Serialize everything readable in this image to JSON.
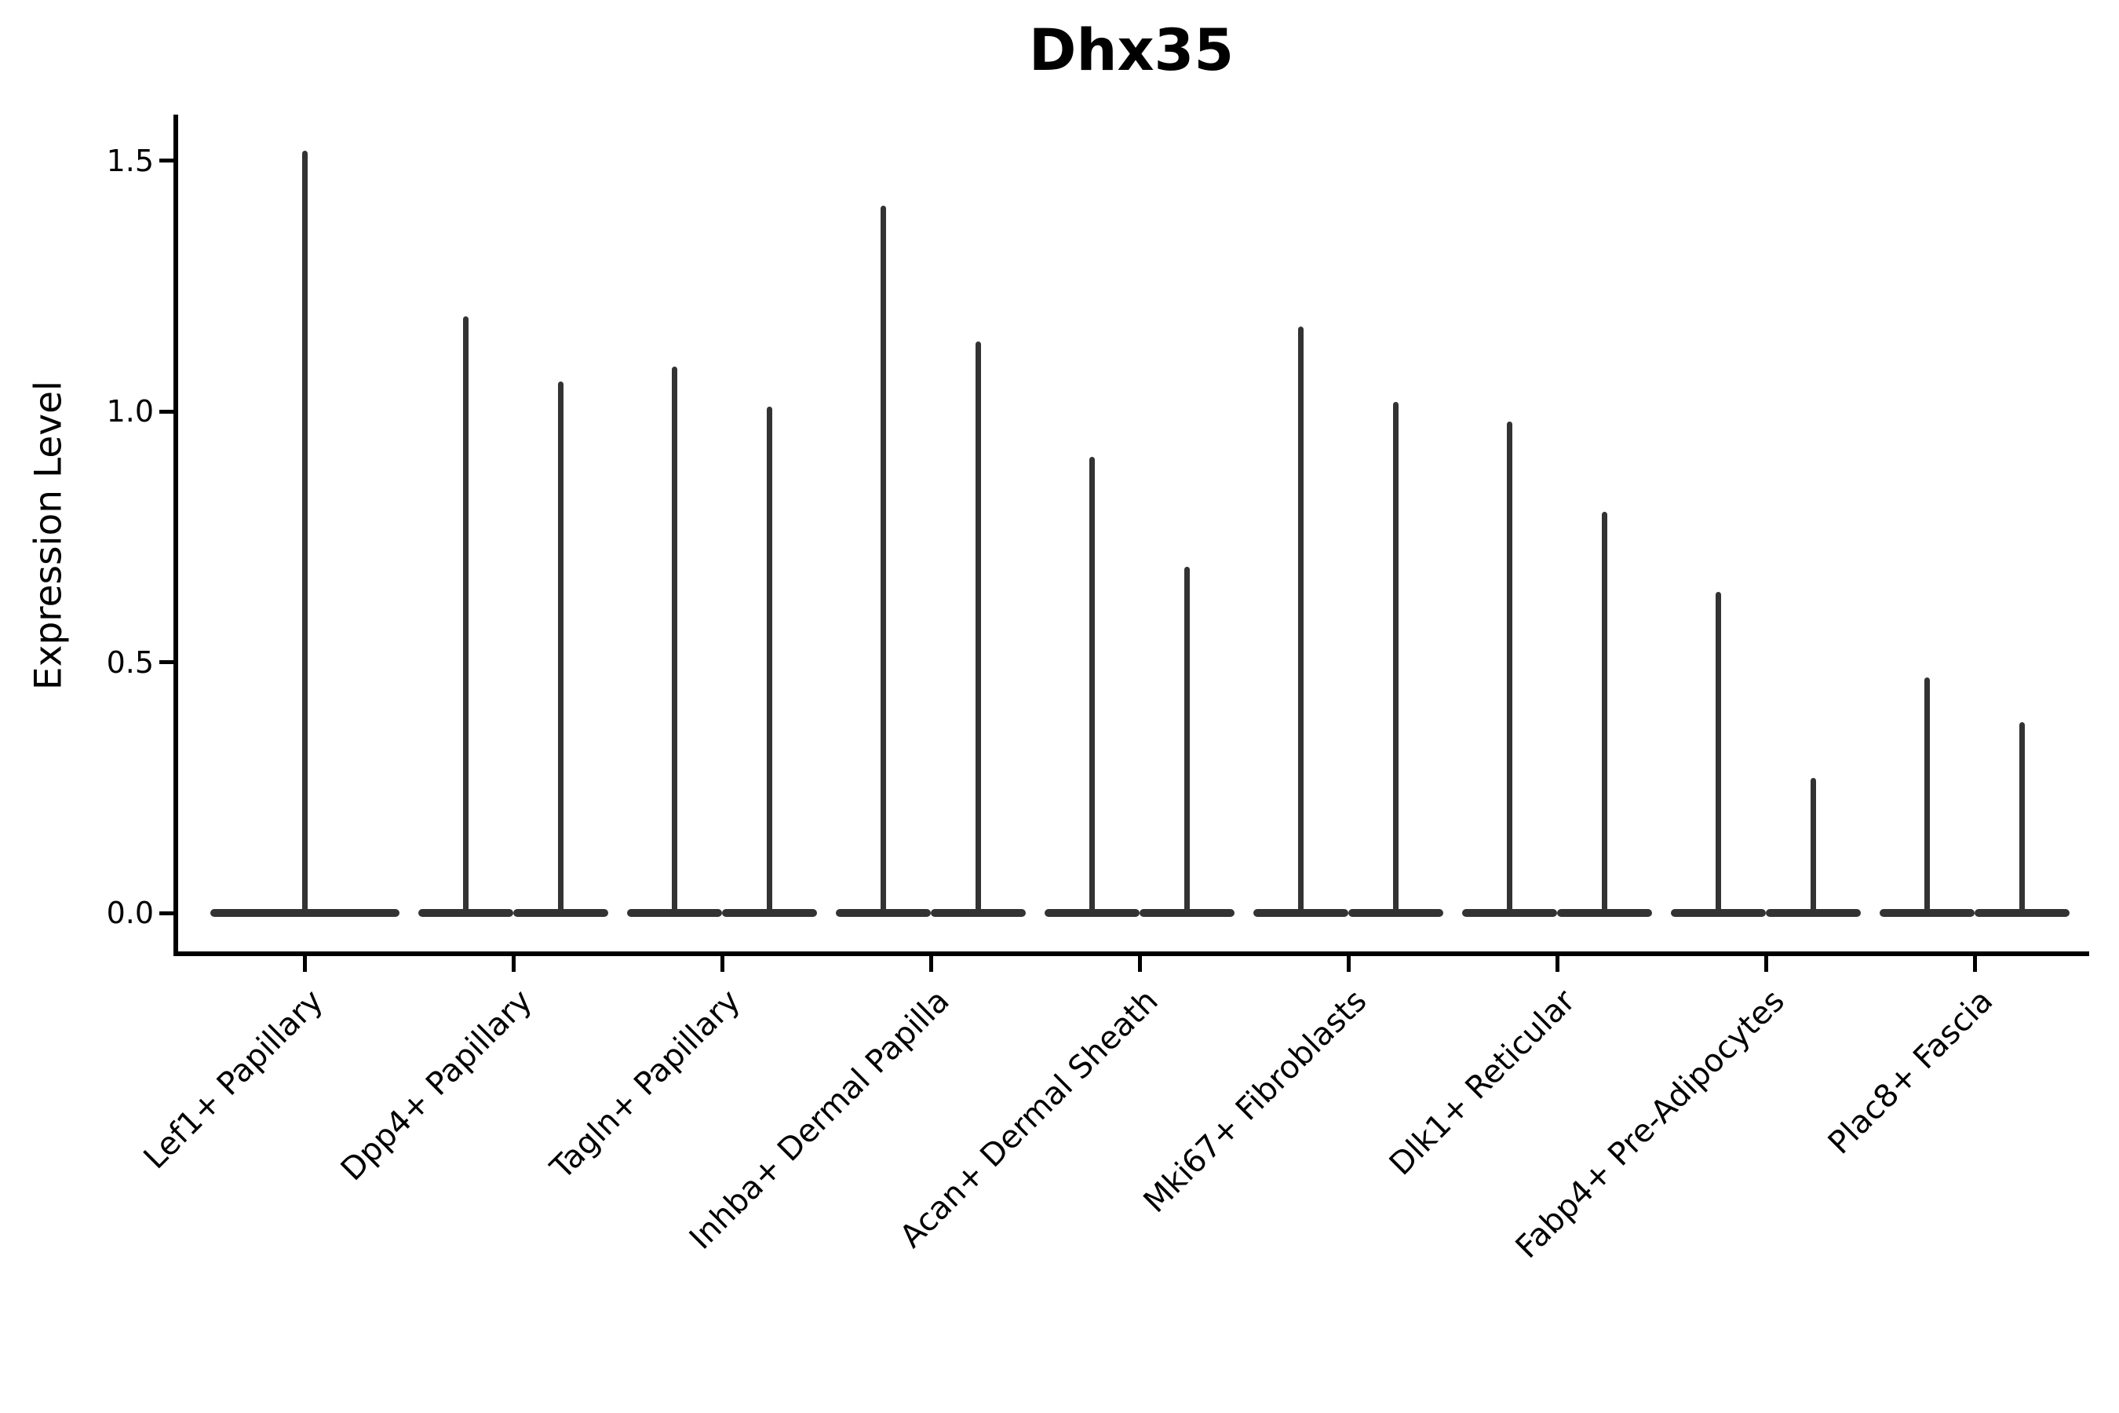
{
  "chart_data": {
    "type": "violin",
    "title": "Dhx35",
    "ylabel": "Expression Level",
    "xlabel": "",
    "y_ticks": [
      0.0,
      0.5,
      1.0,
      1.5
    ],
    "ylim": [
      -0.05,
      1.58
    ],
    "grid": false,
    "legend": null,
    "background": "#ffffff",
    "violin_color": "#333333",
    "axis_color": "#000000",
    "shape_note": "Each violin is collapsed flat at 0 (wide thin base) with a narrow vertical tail rising to its maximum expression value; first category has a single full-width violin, all others have two side-by-side violins.",
    "categories": [
      "Lef1+ Papillary",
      "Dpp4+ Papillary",
      "Tagln+ Papillary",
      "Inhba+ Dermal Papilla",
      "Acan+ Dermal Sheath",
      "Mki67+ Fibroblasts",
      "Dlk1+ Reticular",
      "Fabp4+ Pre-Adipocytes",
      "Plac8+ Fascia"
    ],
    "series": [
      {
        "category": "Lef1+ Papillary",
        "max_values": [
          1.52
        ]
      },
      {
        "category": "Dpp4+ Papillary",
        "max_values": [
          1.19,
          1.06
        ]
      },
      {
        "category": "Tagln+ Papillary",
        "max_values": [
          1.09,
          1.01
        ]
      },
      {
        "category": "Inhba+ Dermal Papilla",
        "max_values": [
          1.41,
          1.14
        ]
      },
      {
        "category": "Acan+ Dermal Sheath",
        "max_values": [
          0.91,
          0.69
        ]
      },
      {
        "category": "Mki67+ Fibroblasts",
        "max_values": [
          1.17,
          1.02
        ]
      },
      {
        "category": "Dlk1+ Reticular",
        "max_values": [
          0.98,
          0.8
        ]
      },
      {
        "category": "Fabp4+ Pre-Adipocytes",
        "max_values": [
          0.64,
          0.27
        ]
      },
      {
        "category": "Plac8+ Fascia",
        "max_values": [
          0.47,
          0.38
        ]
      }
    ]
  }
}
